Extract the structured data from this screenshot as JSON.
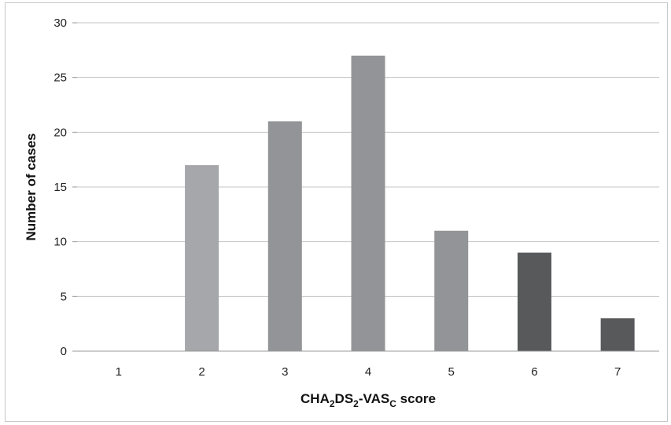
{
  "chart_data": {
    "type": "bar",
    "categories": [
      "1",
      "2",
      "3",
      "4",
      "5",
      "6",
      "7"
    ],
    "values": [
      0,
      17,
      21,
      27,
      11,
      9,
      3
    ],
    "bar_colors": [
      "#a6a7aa",
      "#a6a7aa",
      "#939497",
      "#939497",
      "#939497",
      "#58595b",
      "#58595b"
    ],
    "ylim": [
      0,
      30
    ],
    "yticks": [
      "0",
      "5",
      "10",
      "15",
      "20",
      "25",
      "30"
    ],
    "ylabel": "Number of cases",
    "xlabel": {
      "parts": [
        {
          "text": "CHA",
          "sub": false
        },
        {
          "text": "2",
          "sub": true
        },
        {
          "text": "DS",
          "sub": false
        },
        {
          "text": "2",
          "sub": true
        },
        {
          "text": "-VAS",
          "sub": false
        },
        {
          "text": "C",
          "sub": true
        },
        {
          "text": " score",
          "sub": false
        }
      ]
    },
    "grid": true,
    "legend": "none"
  }
}
